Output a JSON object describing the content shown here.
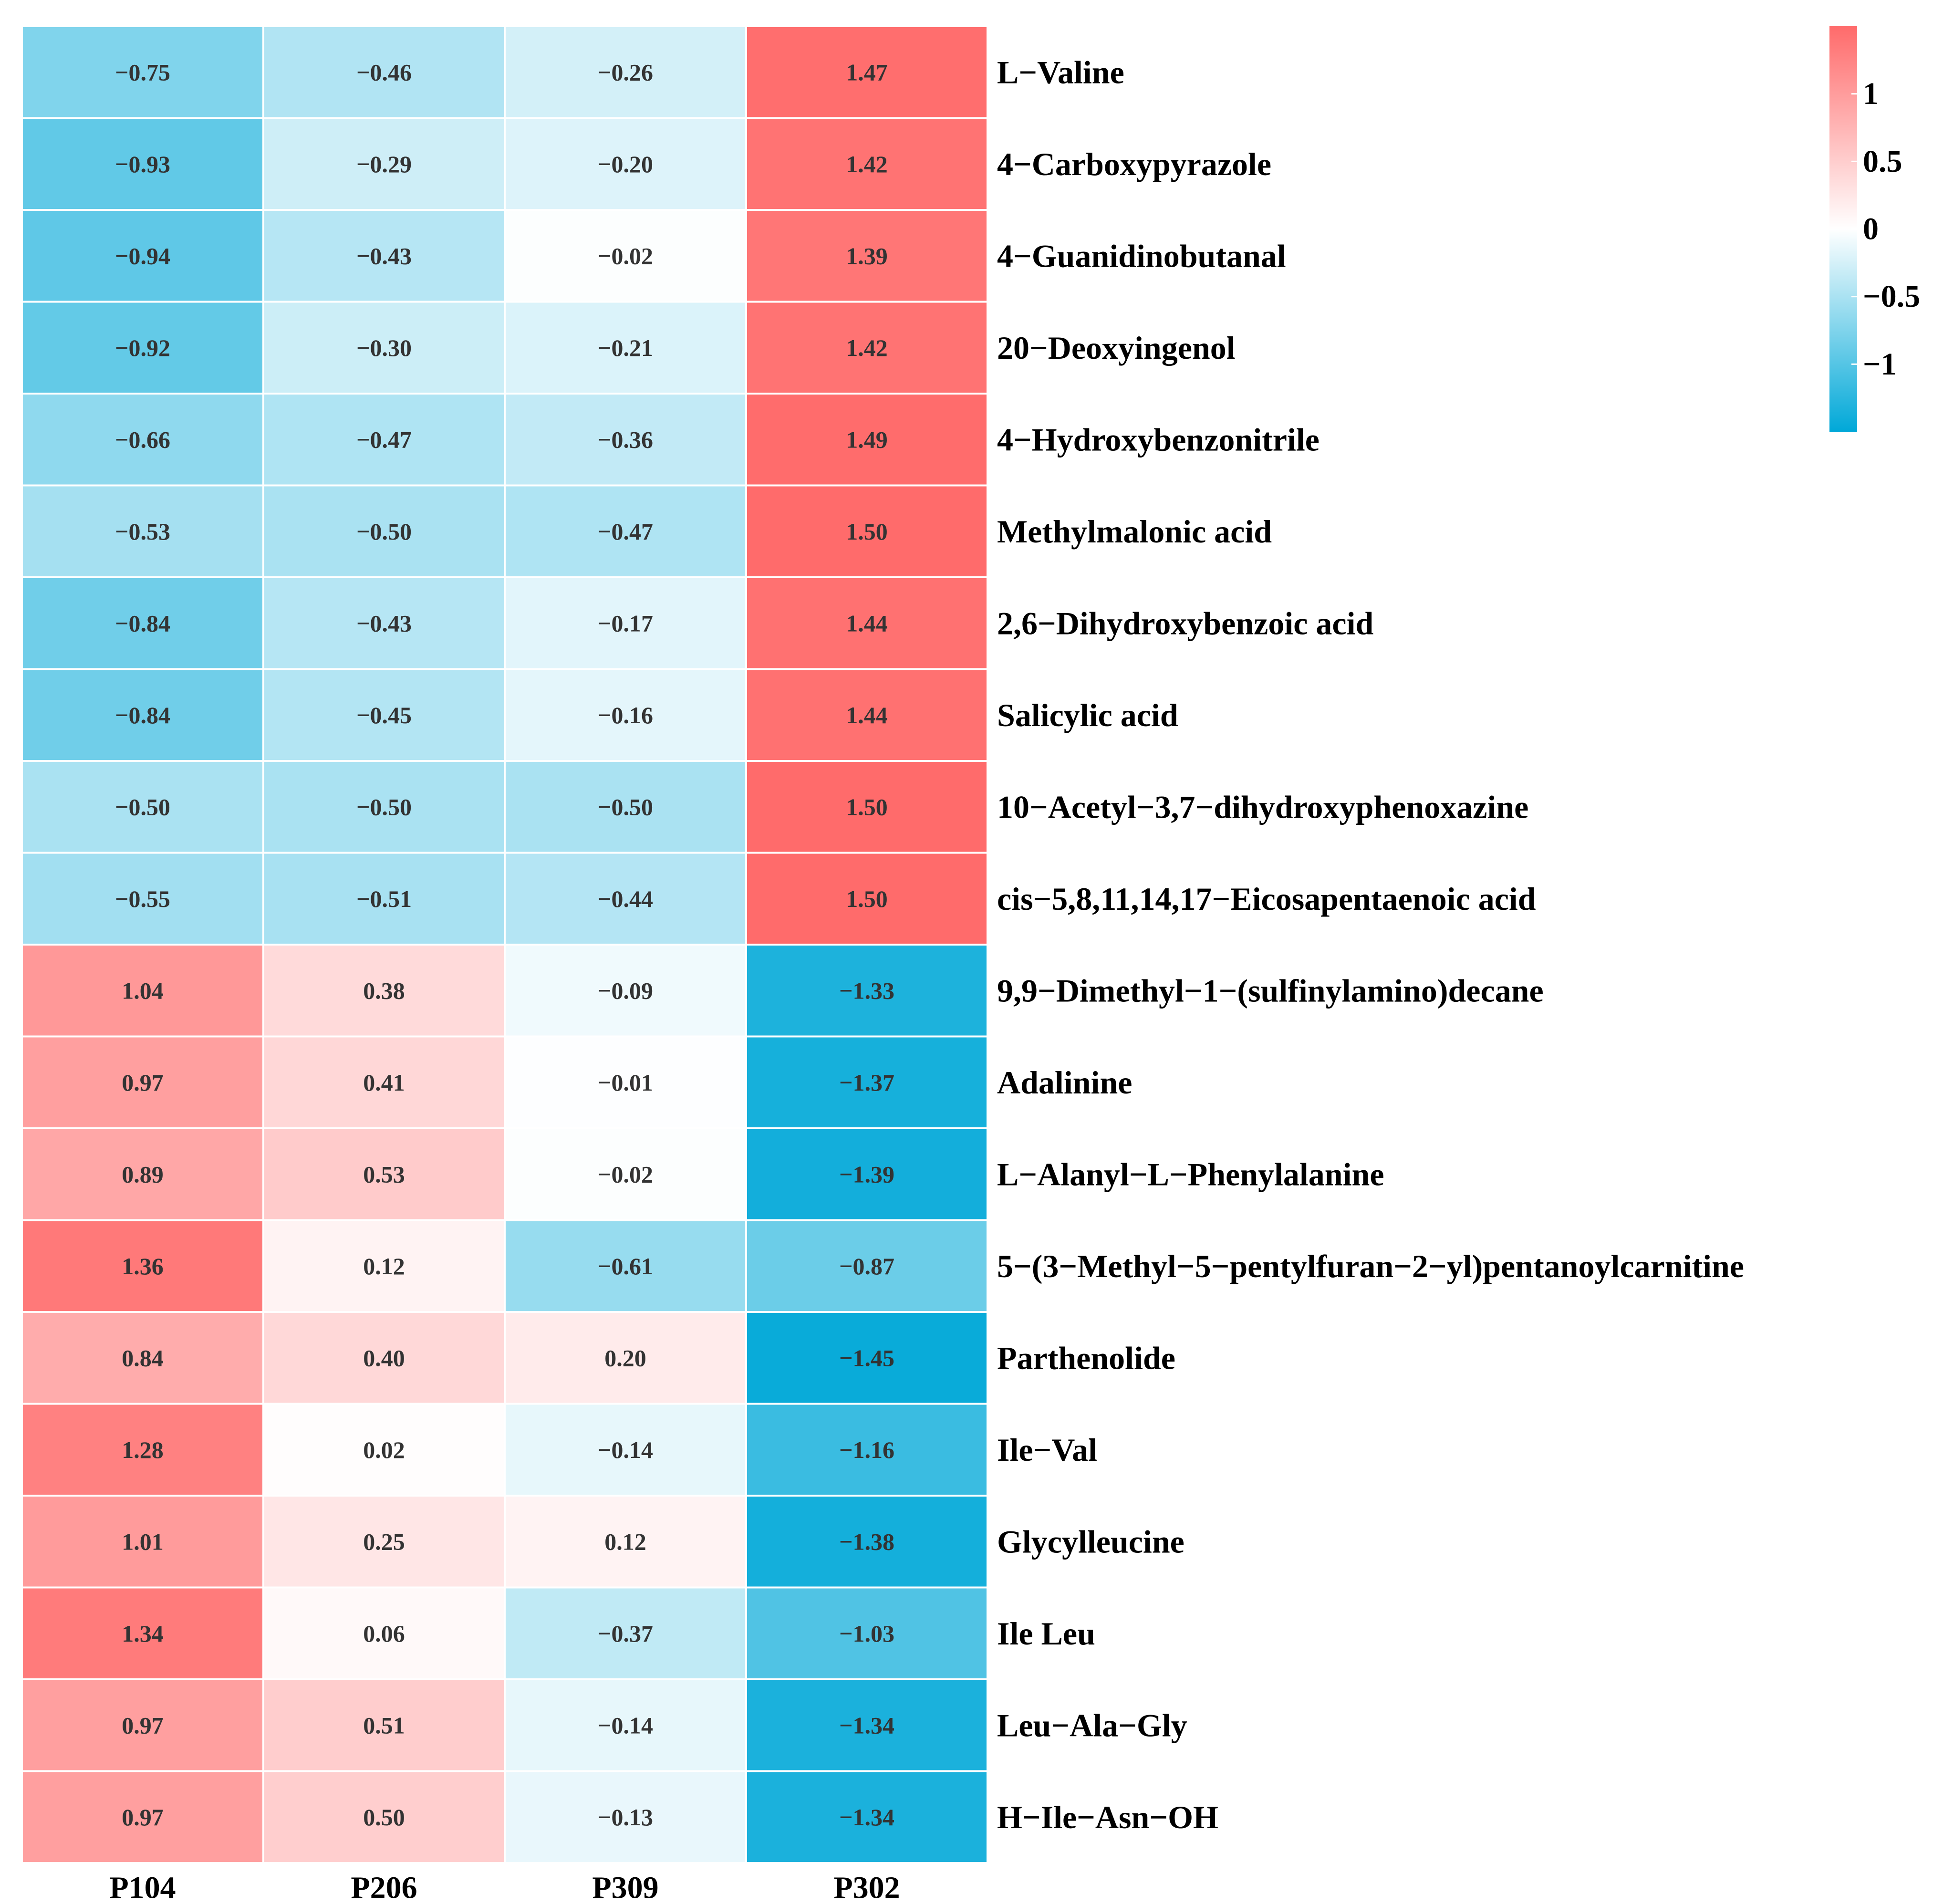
{
  "chart_data": {
    "type": "heatmap",
    "title": "",
    "columns": [
      "P104",
      "P206",
      "P309",
      "P302"
    ],
    "rows": [
      {
        "label": "L−Valine",
        "values": [
          -0.75,
          -0.46,
          -0.26,
          1.47
        ],
        "text": [
          "−0.75",
          "−0.46",
          "−0.26",
          "1.47"
        ]
      },
      {
        "label": "4−Carboxypyrazole",
        "values": [
          -0.93,
          -0.29,
          -0.2,
          1.42
        ],
        "text": [
          "−0.93",
          "−0.29",
          "−0.20",
          "1.42"
        ]
      },
      {
        "label": "4−Guanidinobutanal",
        "values": [
          -0.94,
          -0.43,
          -0.02,
          1.39
        ],
        "text": [
          "−0.94",
          "−0.43",
          "−0.02",
          "1.39"
        ]
      },
      {
        "label": "20−Deoxyingenol",
        "values": [
          -0.92,
          -0.3,
          -0.21,
          1.42
        ],
        "text": [
          "−0.92",
          "−0.30",
          "−0.21",
          "1.42"
        ]
      },
      {
        "label": "4−Hydroxybenzonitrile",
        "values": [
          -0.66,
          -0.47,
          -0.36,
          1.49
        ],
        "text": [
          "−0.66",
          "−0.47",
          "−0.36",
          "1.49"
        ]
      },
      {
        "label": "Methylmalonic acid",
        "values": [
          -0.53,
          -0.5,
          -0.47,
          1.5
        ],
        "text": [
          "−0.53",
          "−0.50",
          "−0.47",
          "1.50"
        ]
      },
      {
        "label": "2,6−Dihydroxybenzoic acid",
        "values": [
          -0.84,
          -0.43,
          -0.17,
          1.44
        ],
        "text": [
          "−0.84",
          "−0.43",
          "−0.17",
          "1.44"
        ]
      },
      {
        "label": "Salicylic acid",
        "values": [
          -0.84,
          -0.45,
          -0.16,
          1.44
        ],
        "text": [
          "−0.84",
          "−0.45",
          "−0.16",
          "1.44"
        ]
      },
      {
        "label": "10−Acetyl−3,7−dihydroxyphenoxazine",
        "values": [
          -0.5,
          -0.5,
          -0.5,
          1.5
        ],
        "text": [
          "−0.50",
          "−0.50",
          "−0.50",
          "1.50"
        ]
      },
      {
        "label": "cis−5,8,11,14,17−Eicosapentaenoic acid",
        "values": [
          -0.55,
          -0.51,
          -0.44,
          1.5
        ],
        "text": [
          "−0.55",
          "−0.51",
          "−0.44",
          "1.50"
        ]
      },
      {
        "label": "9,9−Dimethyl−1−(sulfinylamino)decane",
        "values": [
          1.04,
          0.38,
          -0.09,
          -1.33
        ],
        "text": [
          "1.04",
          "0.38",
          "−0.09",
          "−1.33"
        ]
      },
      {
        "label": "Adalinine",
        "values": [
          0.97,
          0.41,
          -0.01,
          -1.37
        ],
        "text": [
          "0.97",
          "0.41",
          "−0.01",
          "−1.37"
        ]
      },
      {
        "label": "L−Alanyl−L−Phenylalanine",
        "values": [
          0.89,
          0.53,
          -0.02,
          -1.39
        ],
        "text": [
          "0.89",
          "0.53",
          "−0.02",
          "−1.39"
        ]
      },
      {
        "label": "5−(3−Methyl−5−pentylfuran−2−yl)pentanoylcarnitine",
        "values": [
          1.36,
          0.12,
          -0.61,
          -0.87
        ],
        "text": [
          "1.36",
          "0.12",
          "−0.61",
          "−0.87"
        ]
      },
      {
        "label": "Parthenolide",
        "values": [
          0.84,
          0.4,
          0.2,
          -1.45
        ],
        "text": [
          "0.84",
          "0.40",
          "0.20",
          "−1.45"
        ]
      },
      {
        "label": "Ile−Val",
        "values": [
          1.28,
          0.02,
          -0.14,
          -1.16
        ],
        "text": [
          "1.28",
          "0.02",
          "−0.14",
          "−1.16"
        ]
      },
      {
        "label": "Glycylleucine",
        "values": [
          1.01,
          0.25,
          0.12,
          -1.38
        ],
        "text": [
          "1.01",
          "0.25",
          "0.12",
          "−1.38"
        ]
      },
      {
        "label": "Ile Leu",
        "values": [
          1.34,
          0.06,
          -0.37,
          -1.03
        ],
        "text": [
          "1.34",
          "0.06",
          "−0.37",
          "−1.03"
        ]
      },
      {
        "label": "Leu−Ala−Gly",
        "values": [
          0.97,
          0.51,
          -0.14,
          -1.34
        ],
        "text": [
          "0.97",
          "0.51",
          "−0.14",
          "−1.34"
        ]
      },
      {
        "label": "H−Ile−Asn−OH",
        "values": [
          0.97,
          0.5,
          -0.13,
          -1.34
        ],
        "text": [
          "0.97",
          "0.50",
          "−0.13",
          "−1.34"
        ]
      }
    ],
    "colorscale": {
      "min": -1.5,
      "max": 1.5,
      "low_color": "#00a8d8",
      "mid_color": "#ffffff",
      "high_color": "#ff6b6b",
      "ticks": [
        {
          "value": 1,
          "label": "1"
        },
        {
          "value": 0.5,
          "label": "0.5"
        },
        {
          "value": 0,
          "label": "0"
        },
        {
          "value": -0.5,
          "label": "−0.5"
        },
        {
          "value": -1,
          "label": "−1"
        }
      ]
    },
    "legend": "top-right",
    "grid": true
  }
}
